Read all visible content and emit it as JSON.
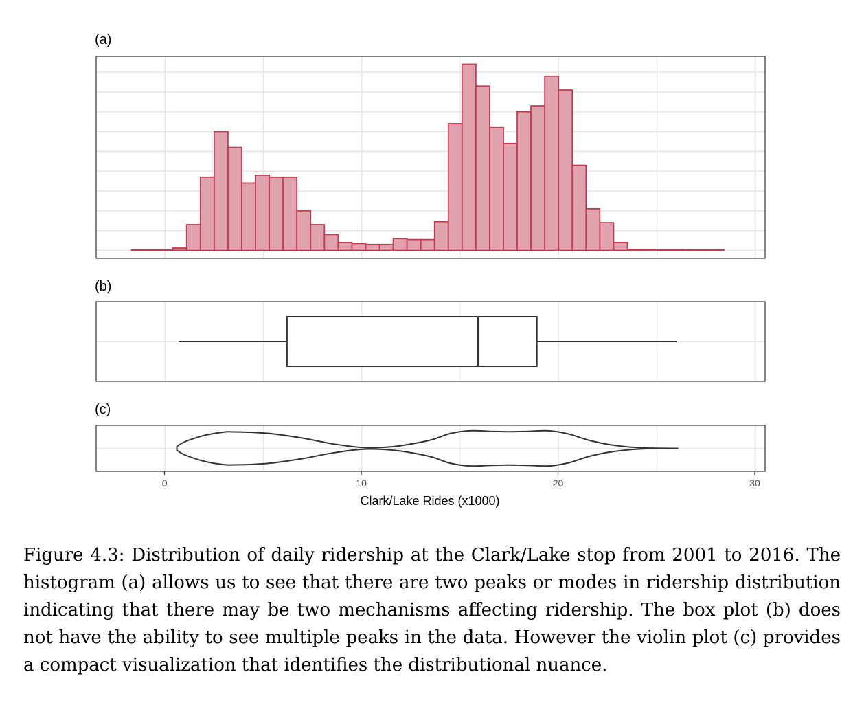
{
  "chart_data": [
    {
      "panel": "(a)",
      "type": "bar",
      "subtype": "histogram",
      "bin_width": 0.7,
      "x_start": -1.7,
      "counts": [
        0.2,
        0.2,
        0.2,
        1.2,
        13,
        37,
        60,
        52,
        34,
        38,
        37,
        37,
        20,
        13,
        8,
        4,
        3.5,
        3,
        3,
        6,
        5.5,
        5.5,
        14.5,
        64,
        94,
        83,
        62,
        54,
        70,
        73,
        88,
        81,
        43,
        21,
        14,
        4,
        0.5,
        0.5,
        0.3,
        0.3,
        0.2,
        0.2,
        0.2
      ],
      "fill": "#e0a3ae",
      "stroke": "#c43b52",
      "xlim": [
        -3.5,
        30.5
      ],
      "ylim": [
        -4,
        98
      ],
      "y_ticks_unlabeled": [
        10,
        20,
        30,
        40,
        50,
        60,
        70,
        80,
        90
      ],
      "grid": true
    },
    {
      "panel": "(b)",
      "type": "box",
      "whisker_low": 0.7,
      "q1": 6.2,
      "median": 15.9,
      "q3": 18.9,
      "whisker_high": 26.0,
      "xlim": [
        -3.5,
        30.5
      ],
      "grid": true
    },
    {
      "panel": "(c)",
      "type": "violin",
      "x": [
        0.6,
        1.0,
        2.0,
        3.0,
        3.5,
        4.5,
        5.5,
        7.0,
        8.5,
        10.0,
        11.0,
        12.0,
        13.5,
        14.5,
        15.5,
        16.5,
        17.5,
        18.5,
        19.5,
        20.5,
        21.5,
        22.5,
        23.5,
        24.5,
        25.5,
        26.0
      ],
      "half_width": [
        0.1,
        0.35,
        0.7,
        0.88,
        0.89,
        0.86,
        0.78,
        0.55,
        0.25,
        0.05,
        0.05,
        0.15,
        0.45,
        0.8,
        0.95,
        0.92,
        0.9,
        0.92,
        0.95,
        0.78,
        0.45,
        0.22,
        0.08,
        0.02,
        0.005,
        0.0
      ],
      "xlim": [
        -3.5,
        30.5
      ],
      "x_ticks": [
        0,
        10,
        20,
        30
      ],
      "xlabel": "Clark/Lake Rides (x1000)",
      "grid": true
    }
  ],
  "labels": {
    "panel_a": "(a)",
    "panel_b": "(b)",
    "panel_c": "(c)",
    "xlabel": "Clark/Lake Rides (x1000)",
    "tick_0": "0",
    "tick_10": "10",
    "tick_20": "20",
    "tick_30": "30"
  },
  "caption": "Figure 4.3: Distribution of daily ridership at the Clark/Lake stop from 2001 to 2016. The histogram (a) allows us to see that there are two peaks or modes in ridership distribution indicating that there may be two mechanisms affecting ridership. The box plot (b) does not have the ability to see multiple peaks in the data. However the violin plot (c) provides a compact visualization that identifies the distributional nuance.",
  "colors": {
    "hist_fill": "#e0a3ae",
    "hist_stroke": "#c43b52",
    "grid": "#e6e6e6",
    "panel_border": "#333333",
    "line": "#333333"
  }
}
